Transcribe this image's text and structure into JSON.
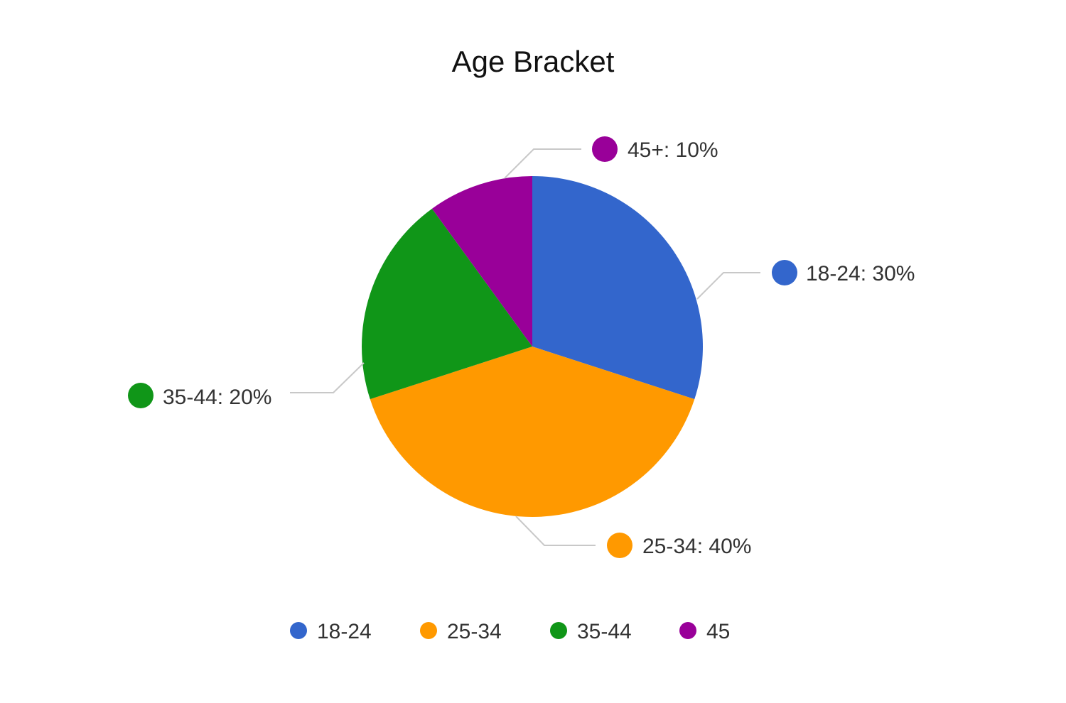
{
  "chart_data": {
    "type": "pie",
    "title": "Age Bracket",
    "categories": [
      "18-24",
      "25-34",
      "35-44",
      "45+"
    ],
    "values": [
      30,
      40,
      20,
      10
    ],
    "colors": [
      "#3366CC",
      "#FF9900",
      "#109618",
      "#990099"
    ],
    "data_labels": [
      "18-24: 30%",
      "25-34: 40%",
      "35-44: 20%",
      "45+: 10%"
    ],
    "legend": {
      "placement": "bottom",
      "labels": [
        "18-24",
        "25-34",
        "35-44",
        "45"
      ]
    }
  }
}
